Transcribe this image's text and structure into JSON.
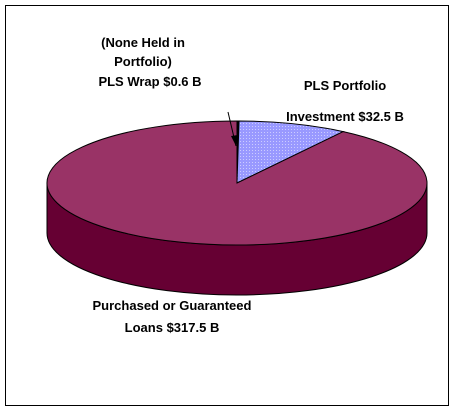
{
  "chart_data": {
    "type": "pie",
    "categories": [
      [
        "PLS Wrap"
      ],
      [
        "PLS Portfolio",
        "Investment"
      ],
      [
        "Purchased or Guaranteed",
        "Loans"
      ]
    ],
    "values": [
      0.6,
      32.5,
      317.5
    ],
    "value_labels": [
      "$0.6 B",
      "$32.5 B",
      "$317.5 B"
    ],
    "annotation": [
      "(None Held in",
      "Portfolio)"
    ],
    "colors": [
      "#000000",
      "#9999ff",
      "#993366"
    ],
    "side_color": "#660033"
  }
}
